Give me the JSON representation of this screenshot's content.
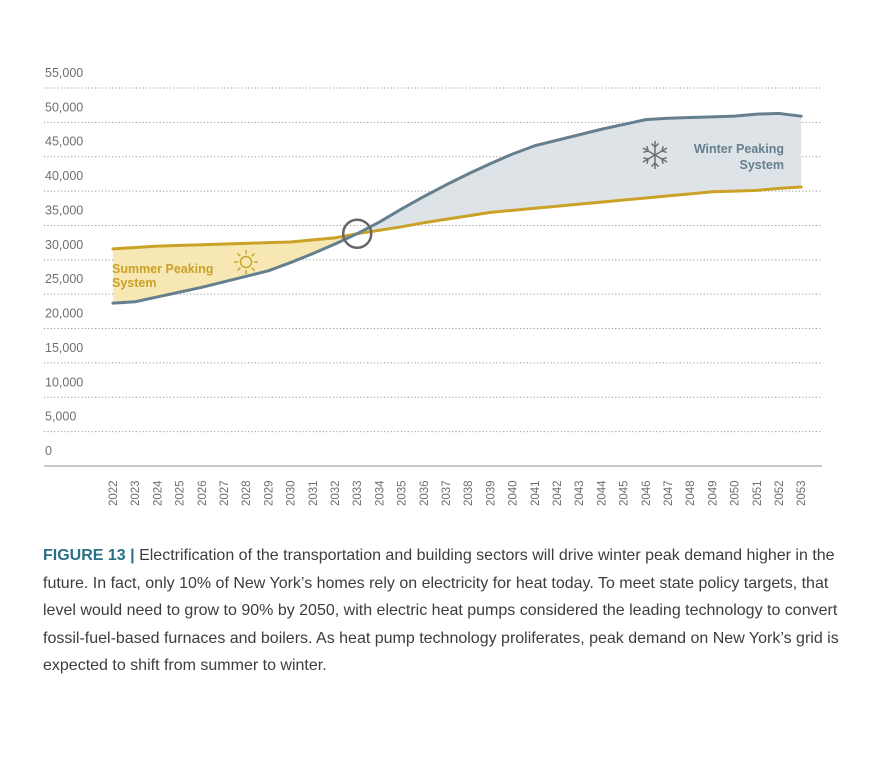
{
  "chart_data": {
    "type": "area",
    "title": "",
    "xlabel": "",
    "ylabel": "",
    "ylim": [
      0,
      55000
    ],
    "y_ticks": [
      "55,000",
      "50,000",
      "45,000",
      "40,000",
      "35,000",
      "30,000",
      "25,000",
      "20,000",
      "15,000",
      "10,000",
      "5,000",
      "0"
    ],
    "y_tick_values": [
      55000,
      50000,
      45000,
      40000,
      35000,
      30000,
      25000,
      20000,
      15000,
      10000,
      5000,
      0
    ],
    "grid": "horizontal dotted",
    "x": [
      "2022",
      "2023",
      "2024",
      "2025",
      "2026",
      "2027",
      "2028",
      "2029",
      "2030",
      "2031",
      "2032",
      "2033",
      "2034",
      "2035",
      "2036",
      "2037",
      "2038",
      "2039",
      "2040",
      "2041",
      "2042",
      "2043",
      "2044",
      "2045",
      "2046",
      "2047",
      "2048",
      "2049",
      "2050",
      "2051",
      "2052",
      "2053"
    ],
    "series": [
      {
        "role": "summer_peak",
        "color": "#c9a227",
        "values": [
          31600,
          31800,
          32000,
          32100,
          32200,
          32300,
          32400,
          32500,
          32600,
          32900,
          33200,
          33800,
          34300,
          34800,
          35400,
          35900,
          36400,
          36900,
          37200,
          37500,
          37800,
          38100,
          38400,
          38700,
          39000,
          39300,
          39600,
          39900,
          40000,
          40100,
          40400,
          40600
        ]
      },
      {
        "role": "winter_peak",
        "color": "#667f8e",
        "values": [
          23700,
          23900,
          24600,
          25300,
          26000,
          26800,
          27600,
          28400,
          29600,
          30900,
          32300,
          33800,
          35500,
          37400,
          39200,
          40900,
          42500,
          44000,
          45400,
          46600,
          47400,
          48200,
          49000,
          49700,
          50400,
          50600,
          50700,
          50800,
          50900,
          51200,
          51300,
          50900
        ]
      }
    ],
    "crossover_year": "2033",
    "annotations": {
      "summer": [
        "Summer Peaking",
        "System"
      ],
      "winter": [
        "Winter Peaking",
        "System"
      ]
    },
    "fill_colors": {
      "summer_region": "#f6e7b3",
      "winter_region": "#dde3e7"
    },
    "icons": {
      "summer": "sun-icon",
      "winter": "snowflake-icon",
      "crossover": "crossover-circle-marker"
    }
  },
  "caption": {
    "label": "FIGURE 13",
    "separator": "|",
    "text": "Electrification of the transportation and building sectors will drive winter peak demand higher in the future. In fact, only 10% of New York’s homes rely on electricity for heat today. To meet state policy targets, that level would need to grow to 90% by 2050, with electric heat pumps considered the leading technology to convert fossil-fuel-based furnaces and boilers. As heat pump technology proliferates, peak demand on New York’s grid is expected to shift from summer to winter."
  }
}
